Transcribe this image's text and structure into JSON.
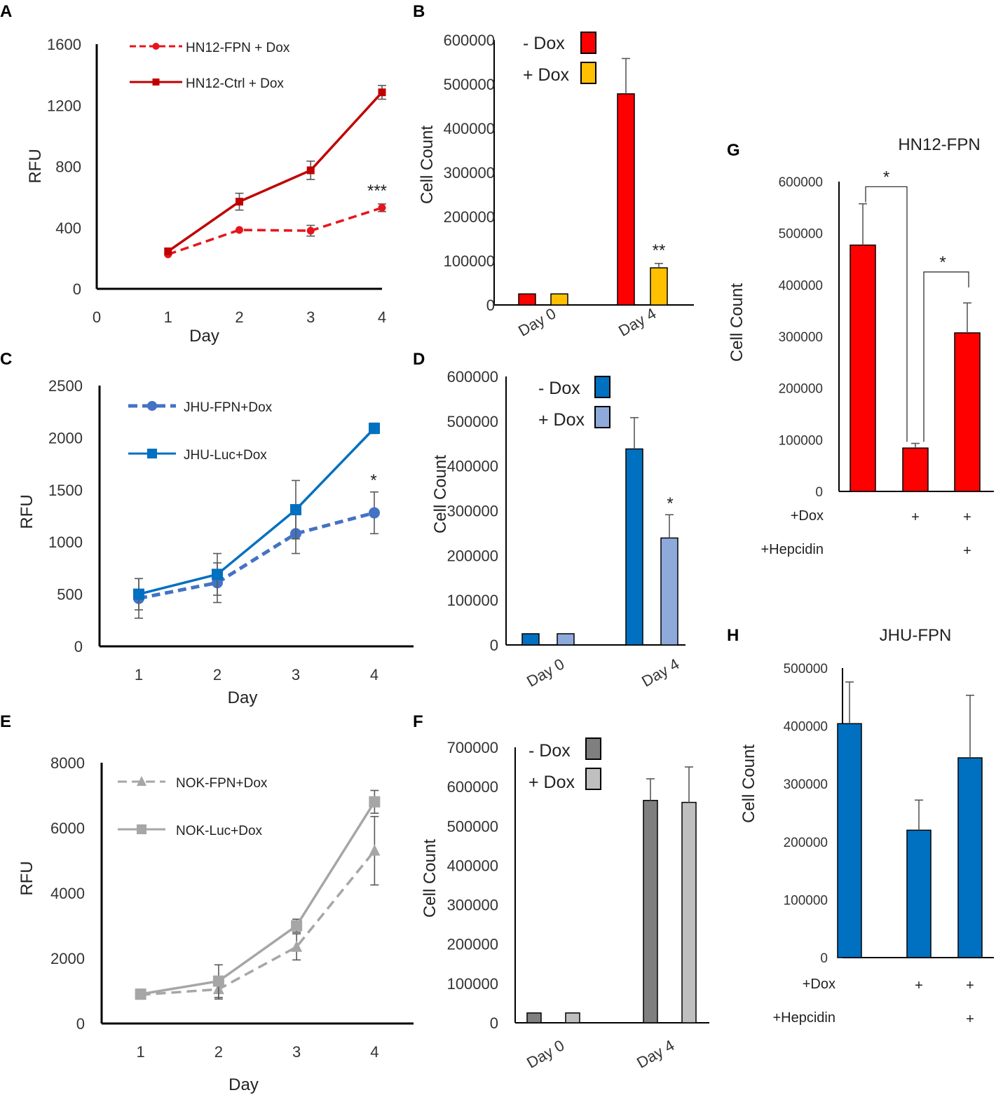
{
  "chart_data": [
    {
      "id": "A",
      "panel_letter": "A",
      "type": "line",
      "xlabel": "Day",
      "ylabel": "RFU",
      "xlim": [
        0,
        4
      ],
      "ylim": [
        0,
        1600
      ],
      "xticks": [
        "0",
        "1",
        "2",
        "3",
        "4"
      ],
      "yticks": [
        "0",
        "400",
        "800",
        "1200",
        "1600"
      ],
      "annotation": "***",
      "series": [
        {
          "name": "HN12-FPN + Dox",
          "color": "#e8141b",
          "dashed": true,
          "marker": "circle",
          "x": [
            1,
            2,
            3,
            4
          ],
          "y": [
            225,
            385,
            380,
            530
          ],
          "err": [
            0,
            0,
            35,
            25
          ]
        },
        {
          "name": "HN12-Ctrl + Dox",
          "color": "#c00000",
          "dashed": false,
          "marker": "square",
          "x": [
            1,
            2,
            3,
            4
          ],
          "y": [
            245,
            570,
            775,
            1285
          ],
          "err": [
            0,
            55,
            60,
            45
          ]
        }
      ]
    },
    {
      "id": "B",
      "panel_letter": "B",
      "type": "bar",
      "ylabel": "Cell Count",
      "ylim": [
        0,
        600000
      ],
      "yticks": [
        "0",
        "100000",
        "200000",
        "300000",
        "400000",
        "500000",
        "600000"
      ],
      "categories": [
        "Day 0",
        "Day 4"
      ],
      "series": [
        {
          "name": "- Dox",
          "color": "#ff0000",
          "values": [
            25000,
            478000
          ],
          "err": [
            0,
            80000
          ]
        },
        {
          "name": "+ Dox",
          "color": "#ffc000",
          "values": [
            25000,
            84000
          ],
          "err": [
            0,
            10000
          ]
        }
      ],
      "annotation": "**"
    },
    {
      "id": "C",
      "panel_letter": "C",
      "type": "line",
      "xlabel": "Day",
      "ylabel": "RFU",
      "xlim": [
        0.5,
        4.5
      ],
      "ylim": [
        0,
        2500
      ],
      "xticks": [
        "1",
        "2",
        "3",
        "4"
      ],
      "yticks": [
        "0",
        "500",
        "1000",
        "1500",
        "2000",
        "2500"
      ],
      "annotation": "*",
      "series": [
        {
          "name": "JHU-FPN+Dox",
          "color": "#4472c4",
          "dashed": true,
          "marker": "circle",
          "x": [
            1,
            2,
            3,
            4
          ],
          "y": [
            460,
            610,
            1080,
            1280
          ],
          "err": [
            190,
            190,
            190,
            200
          ]
        },
        {
          "name": "JHU-Luc+Dox",
          "color": "#0070c0",
          "dashed": false,
          "marker": "square",
          "x": [
            1,
            2,
            3,
            4
          ],
          "y": [
            500,
            690,
            1310,
            2090
          ],
          "err": [
            150,
            200,
            280,
            50
          ]
        }
      ]
    },
    {
      "id": "D",
      "panel_letter": "D",
      "type": "bar",
      "ylabel": "Cell Count",
      "ylim": [
        0,
        600000
      ],
      "yticks": [
        "0",
        "100000",
        "200000",
        "300000",
        "400000",
        "500000",
        "600000"
      ],
      "categories": [
        "Day 0",
        "Day 4"
      ],
      "series": [
        {
          "name": "- Dox",
          "color": "#0070c0",
          "values": [
            25000,
            438000
          ],
          "err": [
            0,
            70000
          ]
        },
        {
          "name": "+ Dox",
          "color": "#8eaadb",
          "values": [
            25000,
            239000
          ],
          "err": [
            0,
            52000
          ]
        }
      ],
      "annotation": "*"
    },
    {
      "id": "E",
      "panel_letter": "E",
      "type": "line",
      "xlabel": "Day",
      "ylabel": "RFU",
      "xlim": [
        0.5,
        4.5
      ],
      "ylim": [
        0,
        8000
      ],
      "xticks": [
        "1",
        "2",
        "3",
        "4"
      ],
      "yticks": [
        "0",
        "2000",
        "4000",
        "6000",
        "8000"
      ],
      "series": [
        {
          "name": "NOK-FPN+Dox",
          "color": "#a6a6a6",
          "dashed": true,
          "marker": "triangle",
          "x": [
            1,
            2,
            3,
            4
          ],
          "y": [
            880,
            1050,
            2350,
            5300
          ],
          "err": [
            120,
            300,
            400,
            1050
          ]
        },
        {
          "name": "NOK-Luc+Dox",
          "color": "#a6a6a6",
          "dashed": false,
          "marker": "square",
          "x": [
            1,
            2,
            3,
            4
          ],
          "y": [
            900,
            1300,
            3000,
            6800
          ],
          "err": [
            150,
            500,
            200,
            350
          ]
        }
      ]
    },
    {
      "id": "F",
      "panel_letter": "F",
      "type": "bar",
      "ylabel": "Cell Count",
      "ylim": [
        0,
        700000
      ],
      "yticks": [
        "0",
        "100000",
        "200000",
        "300000",
        "400000",
        "500000",
        "600000",
        "700000"
      ],
      "categories": [
        "Day 0",
        "Day 4"
      ],
      "series": [
        {
          "name": "- Dox",
          "color": "#7f7f7f",
          "values": [
            25000,
            565000
          ],
          "err": [
            0,
            55000
          ]
        },
        {
          "name": "+ Dox",
          "color": "#bfbfbf",
          "values": [
            25000,
            560000
          ],
          "err": [
            0,
            90000
          ]
        }
      ]
    },
    {
      "id": "G",
      "panel_letter": "G",
      "type": "bar",
      "title": "HN12-FPN",
      "ylabel": "Cell Count",
      "ylim": [
        0,
        600000
      ],
      "yticks": [
        "0",
        "100000",
        "200000",
        "300000",
        "400000",
        "500000",
        "600000"
      ],
      "values": [
        477000,
        84000,
        307000
      ],
      "err": [
        80000,
        9000,
        58000
      ],
      "color": "#ff0000",
      "conditions": [
        {
          "label": "+Dox",
          "marks": [
            "",
            "+",
            "+"
          ]
        },
        {
          "label": "+Hepcidin",
          "marks": [
            "",
            "",
            "+"
          ]
        }
      ],
      "significance": [
        "*",
        "*"
      ]
    },
    {
      "id": "H",
      "panel_letter": "H",
      "type": "bar",
      "title": "JHU-FPN",
      "ylabel": "Cell Count",
      "ylim": [
        0,
        500000
      ],
      "yticks": [
        "0",
        "100000",
        "200000",
        "300000",
        "400000",
        "500000"
      ],
      "values": [
        404000,
        220000,
        345000
      ],
      "err": [
        72000,
        52000,
        108000
      ],
      "color": "#0070c0",
      "conditions": [
        {
          "label": "+Dox",
          "marks": [
            "",
            "+",
            "+"
          ]
        },
        {
          "label": "+Hepcidin",
          "marks": [
            "",
            "",
            "+"
          ]
        }
      ]
    }
  ]
}
